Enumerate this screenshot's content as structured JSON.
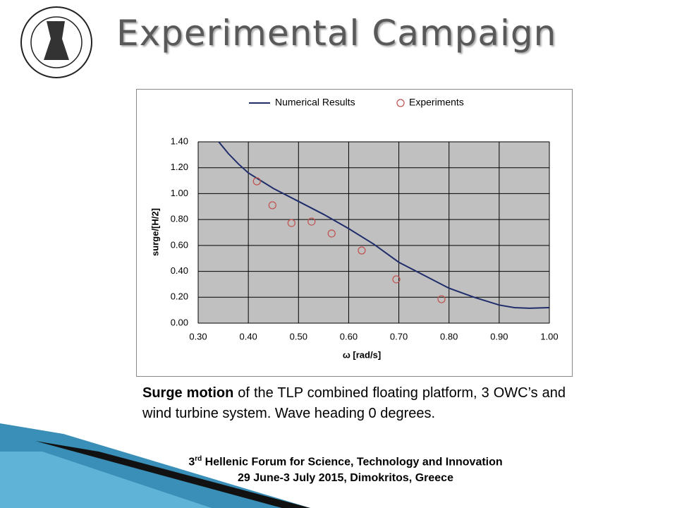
{
  "title": "Experimental Campaign",
  "chart_data": {
    "type": "line",
    "xlabel": "ω [rad/s]",
    "ylabel": "surge/[H/2]",
    "xlim": [
      0.3,
      1.0
    ],
    "ylim": [
      0,
      1.4
    ],
    "xticks": [
      {
        "value": 0.3,
        "label": "0.30"
      },
      {
        "value": 0.4,
        "label": "0.40"
      },
      {
        "value": 0.5,
        "label": "0.50"
      },
      {
        "value": 0.6,
        "label": "0.60"
      },
      {
        "value": 0.7,
        "label": "0.70"
      },
      {
        "value": 0.8,
        "label": "0.80"
      },
      {
        "value": 0.9,
        "label": "0.90"
      },
      {
        "value": 1.0,
        "label": "1.00"
      }
    ],
    "yticks": [
      {
        "value": 0,
        "label": "0.00"
      },
      {
        "value": 0.2,
        "label": "0.20"
      },
      {
        "value": 0.4,
        "label": "0.40"
      },
      {
        "value": 0.6,
        "label": "0.60"
      },
      {
        "value": 0.8,
        "label": "0.80"
      },
      {
        "value": 1.0,
        "label": "1.00"
      },
      {
        "value": 1.2,
        "label": "1.20"
      },
      {
        "value": 1.4,
        "label": "1.40"
      }
    ],
    "grid": true,
    "legend": "top",
    "series": [
      {
        "name": "Numerical Results",
        "type": "line",
        "color": "#1f2d6b",
        "x": [
          0.341,
          0.36,
          0.38,
          0.4,
          0.45,
          0.5,
          0.55,
          0.6,
          0.65,
          0.7,
          0.75,
          0.8,
          0.85,
          0.9,
          0.93,
          0.96,
          1.0
        ],
        "values": [
          1.4,
          1.31,
          1.23,
          1.16,
          1.04,
          0.94,
          0.84,
          0.73,
          0.61,
          0.47,
          0.37,
          0.27,
          0.2,
          0.14,
          0.12,
          0.115,
          0.12
        ]
      },
      {
        "name": "Experiments",
        "type": "scatter",
        "color": "#c0504d",
        "x": [
          0.417,
          0.448,
          0.486,
          0.526,
          0.566,
          0.626,
          0.695,
          0.785
        ],
        "values": [
          1.095,
          0.91,
          0.773,
          0.784,
          0.692,
          0.561,
          0.338,
          0.185
        ]
      }
    ]
  },
  "caption": {
    "bold": "Surge motion",
    "text": " of the TLP combined floating platform, 3 OWC’s and wind turbine system. Wave heading 0 degrees."
  },
  "footer": {
    "line1": {
      "number": "3",
      "superscript": "rd",
      "text": " Hellenic Forum for Science, Technology and Innovation"
    },
    "line2": "29 June-3 July 2015, Dimokritos, Greece"
  }
}
